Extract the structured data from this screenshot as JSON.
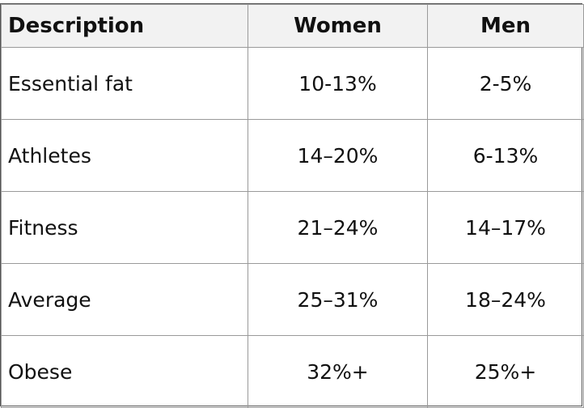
{
  "table": {
    "header": [
      "Description",
      "Women",
      "Men"
    ],
    "rows": [
      [
        "Essential fat",
        "10-13%",
        "2-5%"
      ],
      [
        "Athletes",
        "14–20%",
        "6-13%"
      ],
      [
        "Fitness",
        "21–24%",
        "14–17%"
      ],
      [
        "Average",
        "25–31%",
        "18–24%"
      ],
      [
        "Obese",
        "32%+",
        "25%+"
      ]
    ]
  }
}
